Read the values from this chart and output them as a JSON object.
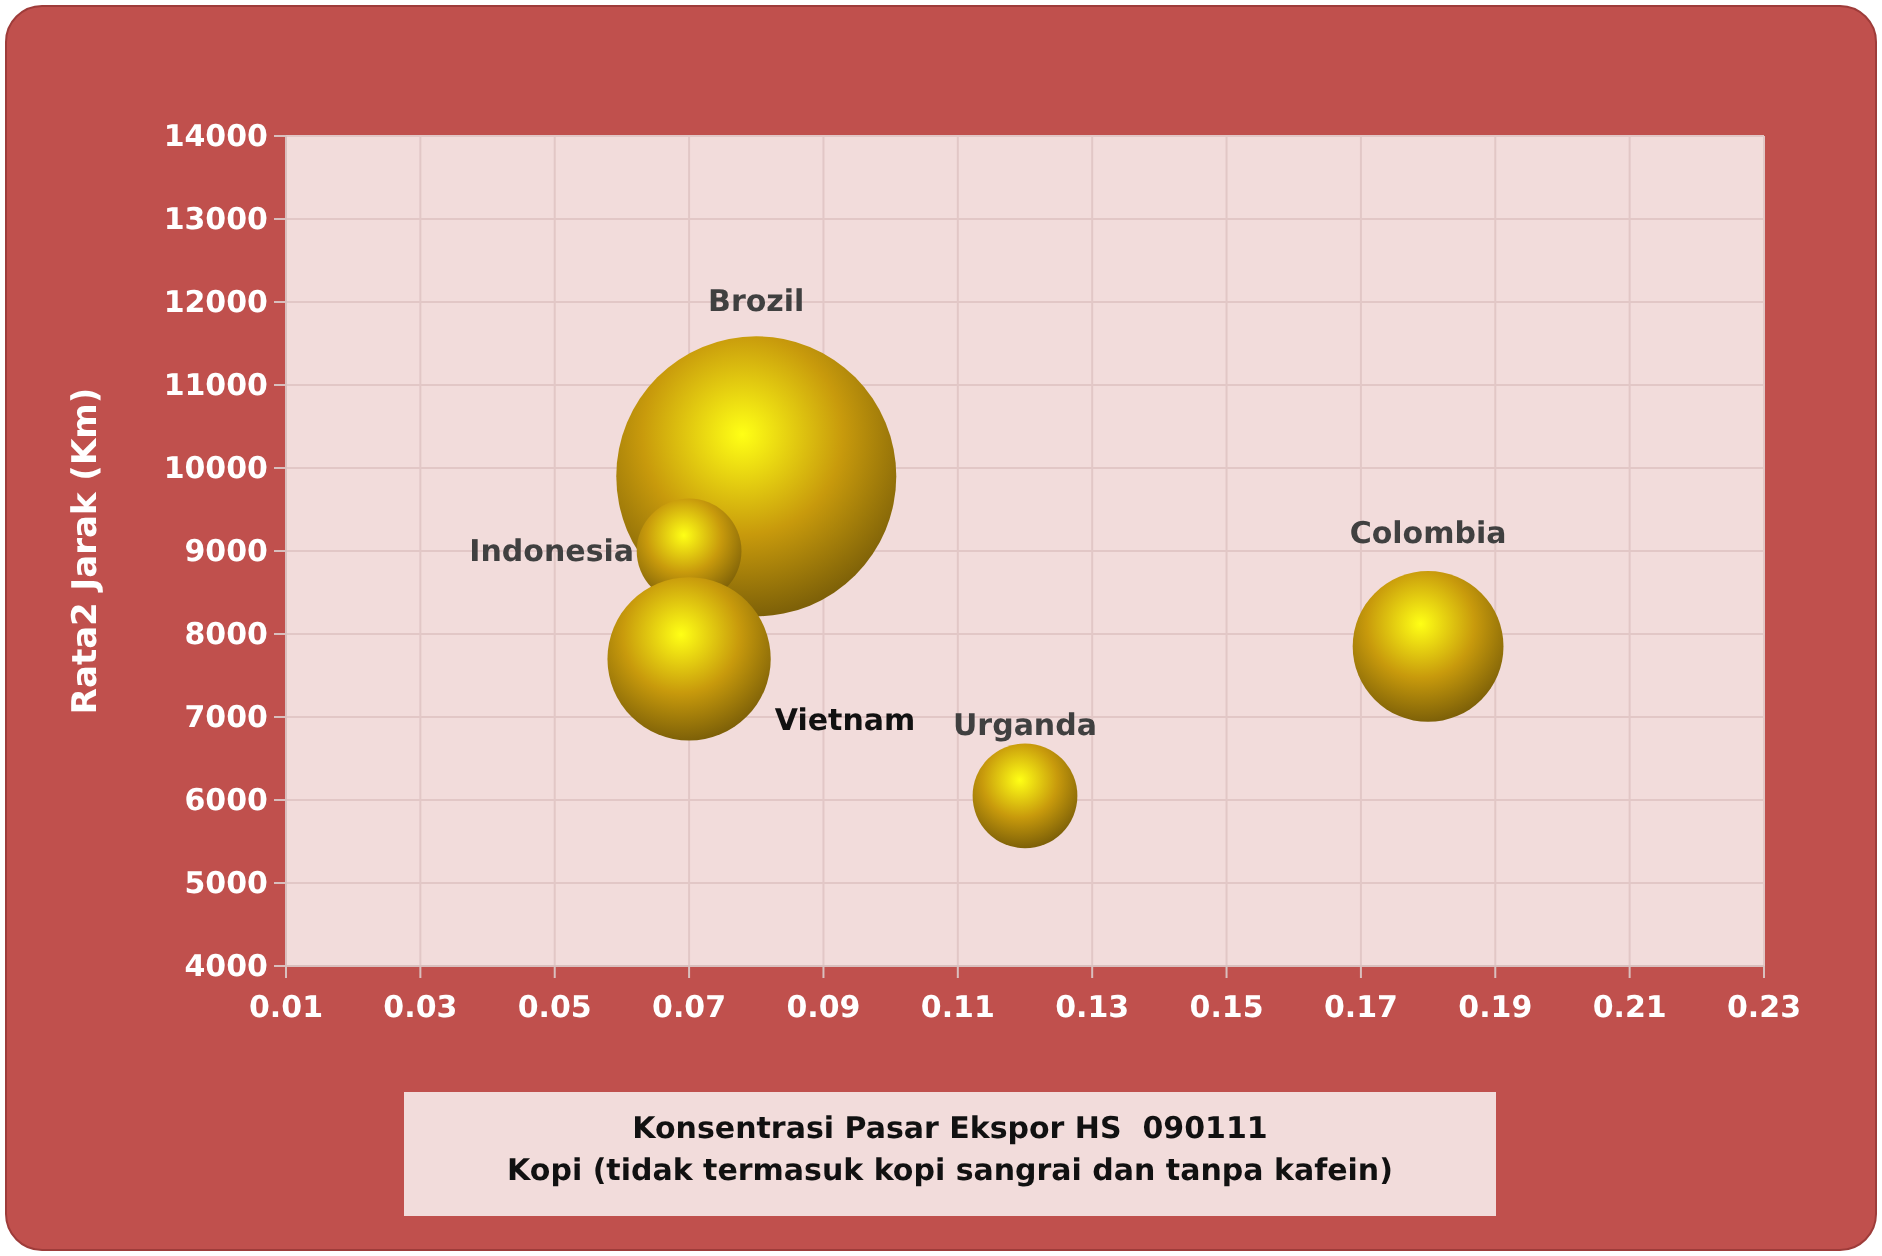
{
  "chart_data": {
    "type": "bubble",
    "xlabel": "Konsentrasi Pasar Ekspor HS  090111\nKopi (tidak termasuk kopi sangrai dan tanpa kafein)",
    "ylabel": "Rata2 Jarak (Km)",
    "xlim": [
      0.01,
      0.23
    ],
    "xticks": [
      {
        "value": 0.01,
        "label": "0.01"
      },
      {
        "value": 0.03,
        "label": "0.03"
      },
      {
        "value": 0.05,
        "label": "0.05"
      },
      {
        "value": 0.07,
        "label": "0.07"
      },
      {
        "value": 0.09,
        "label": "0.09"
      },
      {
        "value": 0.11,
        "label": "0.11"
      },
      {
        "value": 0.13,
        "label": "0.13"
      },
      {
        "value": 0.15,
        "label": "0.15"
      },
      {
        "value": 0.17,
        "label": "0.17"
      },
      {
        "value": 0.19,
        "label": "0.19"
      },
      {
        "value": 0.21,
        "label": "0.21"
      },
      {
        "value": 0.23,
        "label": "0.23"
      }
    ],
    "ylim": [
      4000,
      14000
    ],
    "yticks": [
      4000,
      5000,
      6000,
      7000,
      8000,
      9000,
      10000,
      11000,
      12000,
      13000,
      14000
    ],
    "grid": true,
    "series": [
      {
        "name": "Brozil",
        "color": "#c89a0c",
        "x": [
          0.08
        ],
        "values": [
          9900
        ],
        "sizes": [
          1
        ]
      },
      {
        "name": "Indonesia",
        "color": "#c89a0c",
        "x": [
          0.07
        ],
        "values": [
          9000
        ],
        "sizes": [
          0.14
        ]
      },
      {
        "name": "Vietnam",
        "color": "#c89a0c",
        "x": [
          0.07
        ],
        "values": [
          7700
        ],
        "sizes": [
          0.34
        ]
      },
      {
        "name": "Urganda",
        "color": "#c89a0c",
        "x": [
          0.12
        ],
        "values": [
          6050
        ],
        "sizes": [
          0.14
        ]
      },
      {
        "name": "Colombia",
        "color": "#c89a0c",
        "x": [
          0.18
        ],
        "values": [
          7850
        ],
        "sizes": [
          0.29
        ]
      }
    ]
  }
}
